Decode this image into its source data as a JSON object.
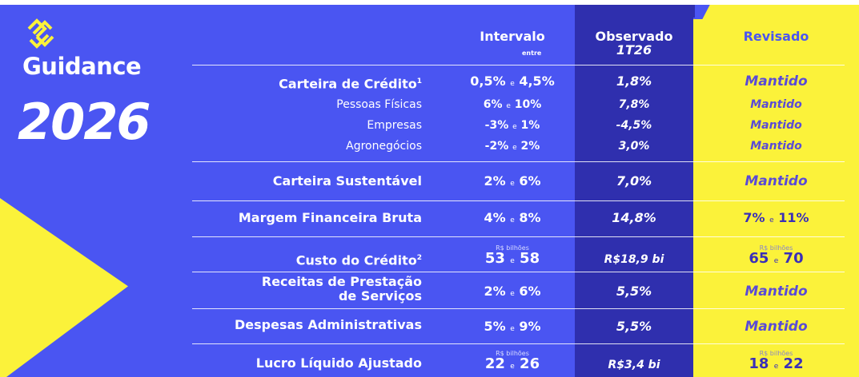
{
  "brand": {
    "title": "Guidance",
    "year": "2026"
  },
  "headers": {
    "interval": "Intervalo",
    "interval_sub": "entre",
    "observed": "Observado",
    "observed_sub": "1T26",
    "revised": "Revisado"
  },
  "unit_note": "R$ bilhões",
  "rows": [
    {
      "label": "Carteira de Crédito",
      "sup": "1",
      "interval_a": "0,5%",
      "interval_sep": "e",
      "interval_b": "4,5%",
      "observed": "1,8%",
      "revised": "Mantido"
    },
    {
      "label": "Pessoas Físicas",
      "interval_a": "6%",
      "interval_sep": "e",
      "interval_b": "10%",
      "observed": "7,8%",
      "revised": "Mantido"
    },
    {
      "label": "Empresas",
      "interval_a": "-3%",
      "interval_sep": "e",
      "interval_b": "1%",
      "observed": "-4,5%",
      "revised": "Mantido"
    },
    {
      "label": "Agronegócios",
      "interval_a": "-2%",
      "interval_sep": "e",
      "interval_b": "2%",
      "observed": "3,0%",
      "revised": "Mantido"
    },
    {
      "label": "Carteira Sustentável",
      "interval_a": "2%",
      "interval_sep": "e",
      "interval_b": "6%",
      "observed": "7,0%",
      "revised": "Mantido"
    },
    {
      "label": "Margem Financeira Bruta",
      "interval_a": "4%",
      "interval_sep": "e",
      "interval_b": "8%",
      "observed": "14,8%",
      "revised_a": "7%",
      "revised_sep": "e",
      "revised_b": "11%"
    },
    {
      "label": "Custo do Crédito",
      "sup": "2",
      "interval_a": "53",
      "interval_sep": "e",
      "interval_b": "58",
      "observed": "R$18,9 bi",
      "revised_a": "65",
      "revised_sep": "e",
      "revised_b": "70"
    },
    {
      "label_line1": "Receitas de Prestação",
      "label_line2": "de Serviços",
      "interval_a": "2%",
      "interval_sep": "e",
      "interval_b": "6%",
      "observed": "5,5%",
      "revised": "Mantido"
    },
    {
      "label": "Despesas Administrativas",
      "interval_a": "5%",
      "interval_sep": "e",
      "interval_b": "9%",
      "observed": "5,5%",
      "revised": "Mantido"
    },
    {
      "label": "Lucro Líquido Ajustado",
      "interval_a": "22",
      "interval_sep": "e",
      "interval_b": "26",
      "observed": "R$3,4 bi",
      "revised_a": "18",
      "revised_sep": "e",
      "revised_b": "22"
    }
  ],
  "colors": {
    "blue": "#4a55f2",
    "dark_blue": "#2f2fae",
    "yellow": "#fbf23a"
  }
}
